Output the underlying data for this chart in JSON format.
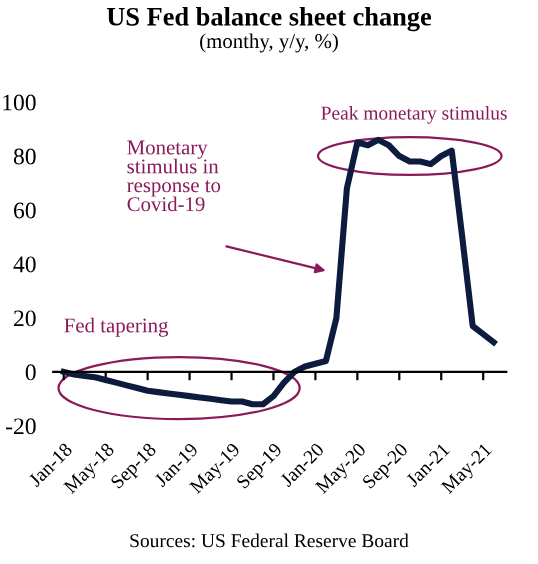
{
  "chart_data": {
    "type": "line",
    "title": "US Fed balance sheet change",
    "subtitle": "(monthy, y/y, %)",
    "categories": [
      "Jan-18",
      null,
      null,
      null,
      "May-18",
      null,
      null,
      null,
      "Sep-18",
      null,
      null,
      null,
      "Jan-19",
      null,
      null,
      null,
      "May-19",
      null,
      null,
      null,
      "Sep-19",
      null,
      null,
      null,
      "Jan-20",
      null,
      null,
      null,
      "May-20",
      null,
      null,
      null,
      "Sep-20",
      null,
      null,
      null,
      "Jan-21",
      null,
      null,
      null,
      "May-21",
      null
    ],
    "series": [
      {
        "color": "#0d1b3e",
        "values": [
          0,
          -1,
          -1.5,
          -2,
          -3,
          -4,
          -5,
          -6,
          -7,
          -7.5,
          -8,
          -8.5,
          -9,
          -9.5,
          -10,
          -10.5,
          -11,
          -11,
          -12,
          -12,
          -9,
          -4,
          0,
          2,
          3,
          4,
          20,
          68,
          85,
          84,
          86,
          84,
          80,
          78,
          78,
          77,
          80,
          82,
          50,
          17,
          14,
          11
        ]
      }
    ],
    "ylim": [
      -20,
      100
    ],
    "yticks": [
      -20,
      0,
      20,
      40,
      60,
      80,
      100
    ],
    "legend": false,
    "marker": "none",
    "line_style": "solid",
    "annotations": [
      "Peak monetary stimulus",
      "Monetary\nstimulus in\nresponse to\nCovid-19",
      "Fed tapering",
      "Sources: US Federal Reserve Board"
    ]
  }
}
